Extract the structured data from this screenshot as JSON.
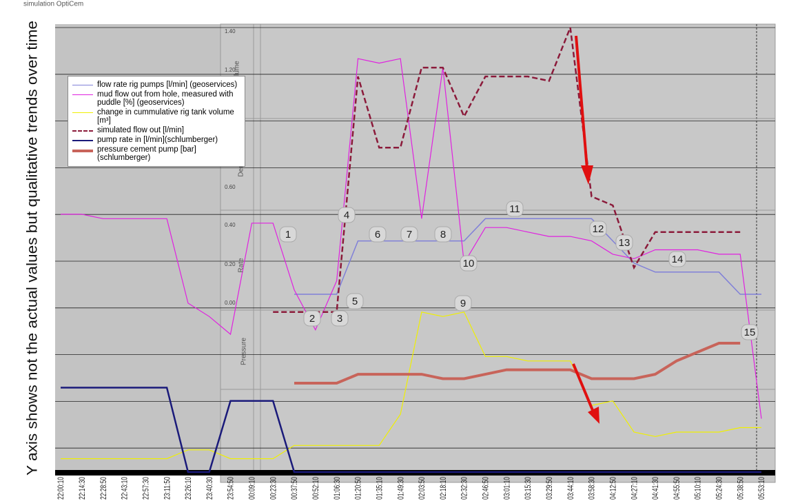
{
  "chart_data": {
    "type": "line",
    "title": "simulation OptiCem",
    "y_label": "Y axis shows not the actual values but qualitative trends over time",
    "ylim": [
      0,
      10
    ],
    "categories": [
      "22:00:10",
      "22:14:30",
      "22:28:50",
      "22:43:10",
      "22:57:30",
      "23:11:50",
      "23:26:10",
      "23:40:30",
      "23:54:50",
      "00:09:10",
      "00:23:30",
      "00:37:50",
      "00:52:10",
      "01:06:30",
      "01:20:50",
      "01:35:10",
      "01:49:30",
      "02:03:50",
      "02:18:10",
      "02:32:30",
      "02:46:50",
      "03:01:10",
      "03:15:30",
      "03:29:50",
      "03:44:10",
      "03:58:30",
      "04:12:50",
      "04:27:10",
      "04:41:30",
      "04:55:50",
      "05:10:10",
      "05:24:30",
      "05:38:50",
      "05:53:10"
    ],
    "series": [
      {
        "name": "flow rate rig pumps [l/min] (geoservices)",
        "color": "#8080d8",
        "line_width": 1.5,
        "dashed": false,
        "values": [
          null,
          null,
          null,
          null,
          null,
          null,
          null,
          null,
          null,
          null,
          null,
          4.0,
          4.0,
          4.0,
          5.2,
          5.2,
          5.2,
          5.2,
          5.2,
          5.2,
          5.7,
          5.7,
          5.7,
          5.7,
          5.7,
          5.7,
          5.2,
          4.7,
          4.5,
          4.5,
          4.5,
          4.5,
          4.0,
          4.0
        ]
      },
      {
        "name": "mud flow out from hole, measured with puddle [%] (geoservices)",
        "color": "#e020e0",
        "line_width": 1.2,
        "dashed": false,
        "values": [
          5.8,
          5.8,
          5.7,
          5.7,
          5.7,
          5.7,
          3.8,
          3.5,
          3.1,
          5.6,
          5.6,
          4.1,
          3.2,
          4.3,
          9.3,
          9.2,
          9.3,
          5.7,
          9.1,
          4.7,
          5.5,
          5.5,
          5.4,
          5.3,
          5.3,
          5.2,
          4.9,
          4.8,
          5.0,
          5.0,
          5.0,
          4.9,
          4.9,
          1.2
        ]
      },
      {
        "name": "change in cummulative rig tank volume [m³]",
        "color": "#f0f000",
        "line_width": 1.2,
        "dashed": false,
        "values": [
          0.3,
          0.3,
          0.3,
          0.3,
          0.3,
          0.3,
          0.5,
          0.5,
          0.3,
          0.3,
          0.3,
          0.6,
          0.6,
          0.6,
          0.6,
          0.6,
          1.3,
          3.6,
          3.5,
          3.6,
          2.6,
          2.6,
          2.5,
          2.5,
          2.5,
          1.5,
          1.6,
          0.9,
          0.8,
          0.9,
          0.9,
          0.9,
          1.0,
          1.0
        ]
      },
      {
        "name": "simulated flow out [l/min]",
        "color": "#8b1a3a",
        "line_width": 2.5,
        "dashed": true,
        "values": [
          null,
          null,
          null,
          null,
          null,
          null,
          null,
          null,
          null,
          null,
          3.6,
          3.6,
          3.6,
          3.6,
          8.9,
          7.3,
          7.3,
          9.1,
          9.1,
          8.0,
          8.9,
          8.9,
          8.9,
          8.8,
          10.0,
          6.2,
          6.0,
          4.6,
          5.4,
          5.4,
          5.4,
          5.4,
          5.4,
          null
        ]
      },
      {
        "name": "pump rate in [l/min](schlumberger)",
        "color": "#1a1a7a",
        "line_width": 2.5,
        "dashed": false,
        "values": [
          1.9,
          1.9,
          1.9,
          1.9,
          1.9,
          1.9,
          0,
          0,
          1.6,
          1.6,
          1.6,
          0,
          0,
          0,
          0,
          0,
          0,
          0,
          0,
          0,
          0,
          0,
          0,
          0,
          0,
          0,
          0,
          0,
          0,
          0,
          0,
          0,
          0,
          0
        ]
      },
      {
        "name": "pressure cement pump [bar] (schlumberger)",
        "color": "#c8645a",
        "line_width": 4,
        "dashed": false,
        "values": [
          null,
          null,
          null,
          null,
          null,
          null,
          null,
          null,
          null,
          null,
          null,
          2.0,
          2.0,
          2.0,
          2.2,
          2.2,
          2.2,
          2.2,
          2.1,
          2.1,
          2.2,
          2.3,
          2.3,
          2.3,
          2.3,
          2.1,
          2.1,
          2.1,
          2.2,
          2.5,
          2.7,
          2.9,
          2.9,
          null
        ]
      }
    ],
    "panel_labels": [
      "Volume",
      "Density",
      "Rate",
      "Pressure"
    ],
    "panel_tick_labels": [
      "1.40",
      "1.20",
      "0.60",
      "0.40",
      "0.20",
      "0.00"
    ],
    "annotations": [
      "1",
      "2",
      "3",
      "4",
      "5",
      "6",
      "7",
      "8",
      "9",
      "10",
      "11",
      "12",
      "13",
      "14",
      "15"
    ]
  }
}
